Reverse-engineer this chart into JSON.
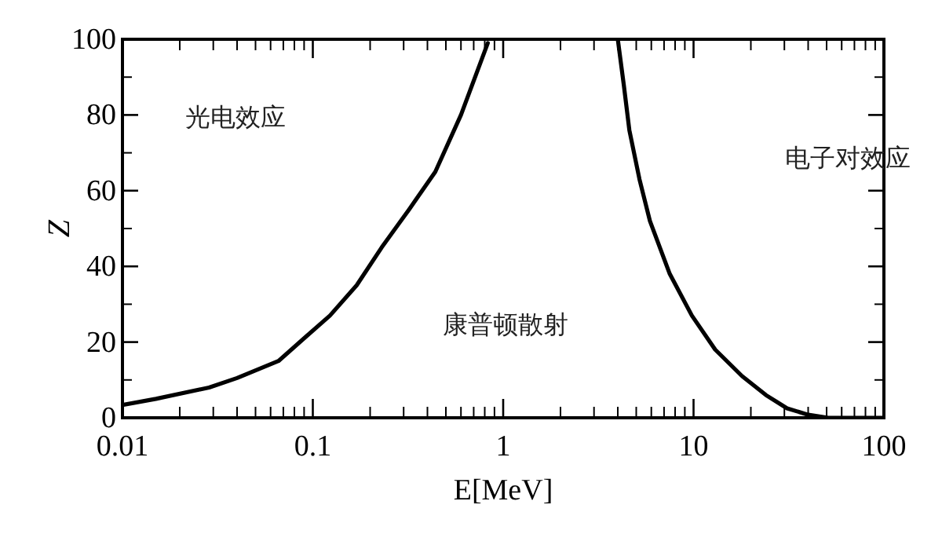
{
  "chart_data": {
    "type": "line",
    "xlabel": "E[MeV]",
    "ylabel": "Z",
    "log": "x",
    "xlim": [
      0.01,
      100
    ],
    "ylim": [
      0,
      100
    ],
    "xticks": [
      0.01,
      0.1,
      1,
      10,
      100
    ],
    "yticks": [
      0,
      20,
      40,
      60,
      80,
      100
    ],
    "series": [
      {
        "color": "#000000",
        "x": [
          0.01,
          0.015,
          0.0285,
          0.04,
          0.066,
          0.09,
          0.123,
          0.17,
          0.23,
          0.32,
          0.44,
          0.6,
          0.83
        ],
        "values": [
          3.4,
          5,
          8,
          10.5,
          15,
          21,
          27,
          35,
          45,
          55,
          65,
          80,
          99
        ]
      },
      {
        "color": "#000000",
        "x": [
          4.0,
          4.3,
          4.6,
          5.2,
          5.9,
          7.5,
          9.8,
          13,
          18,
          24,
          31,
          40,
          51,
          100
        ],
        "values": [
          100,
          88,
          76,
          63,
          52,
          38,
          27,
          18,
          11,
          6,
          2.5,
          0.8,
          0,
          0
        ]
      }
    ],
    "annotations": [
      "光电效应",
      "康普顿散射",
      "电子对效应"
    ]
  }
}
